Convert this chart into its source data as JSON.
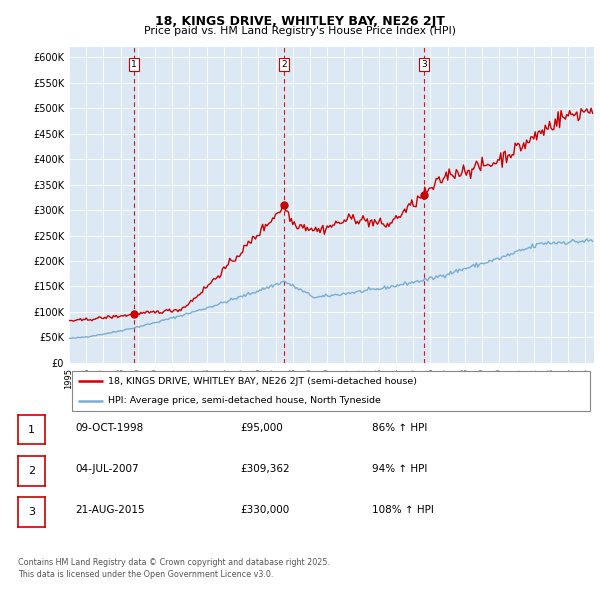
{
  "title1": "18, KINGS DRIVE, WHITLEY BAY, NE26 2JT",
  "title2": "Price paid vs. HM Land Registry's House Price Index (HPI)",
  "ylabel_ticks": [
    "£0",
    "£50K",
    "£100K",
    "£150K",
    "£200K",
    "£250K",
    "£300K",
    "£350K",
    "£400K",
    "£450K",
    "£500K",
    "£550K",
    "£600K"
  ],
  "ytick_values": [
    0,
    50000,
    100000,
    150000,
    200000,
    250000,
    300000,
    350000,
    400000,
    450000,
    500000,
    550000,
    600000
  ],
  "sale_prices": [
    95000,
    309362,
    330000
  ],
  "sale_labels": [
    "1",
    "2",
    "3"
  ],
  "sale_year_floats": [
    1998.77,
    2007.5,
    2015.64
  ],
  "sale_label_info": [
    {
      "num": "1",
      "date": "09-OCT-1998",
      "price": "£95,000",
      "hpi": "86% ↑ HPI"
    },
    {
      "num": "2",
      "date": "04-JUL-2007",
      "price": "£309,362",
      "hpi": "94% ↑ HPI"
    },
    {
      "num": "3",
      "date": "21-AUG-2015",
      "price": "£330,000",
      "hpi": "108% ↑ HPI"
    }
  ],
  "legend_line1": "18, KINGS DRIVE, WHITLEY BAY, NE26 2JT (semi-detached house)",
  "legend_line2": "HPI: Average price, semi-detached house, North Tyneside",
  "footer": "Contains HM Land Registry data © Crown copyright and database right 2025.\nThis data is licensed under the Open Government Licence v3.0.",
  "red_color": "#cc0000",
  "blue_color": "#7aadd4",
  "chart_bg_color": "#dce9f5",
  "bg_color": "#ffffff",
  "grid_color": "#ffffff",
  "vline_color": "#cc0000",
  "xlim_start": 1995.0,
  "xlim_end": 2025.5,
  "ylim_top": 620000,
  "xtick_years": [
    1995,
    1996,
    1997,
    1998,
    1999,
    2000,
    2001,
    2002,
    2003,
    2004,
    2005,
    2006,
    2007,
    2008,
    2009,
    2010,
    2011,
    2012,
    2013,
    2014,
    2015,
    2016,
    2017,
    2018,
    2019,
    2020,
    2021,
    2022,
    2023,
    2024,
    2025
  ]
}
